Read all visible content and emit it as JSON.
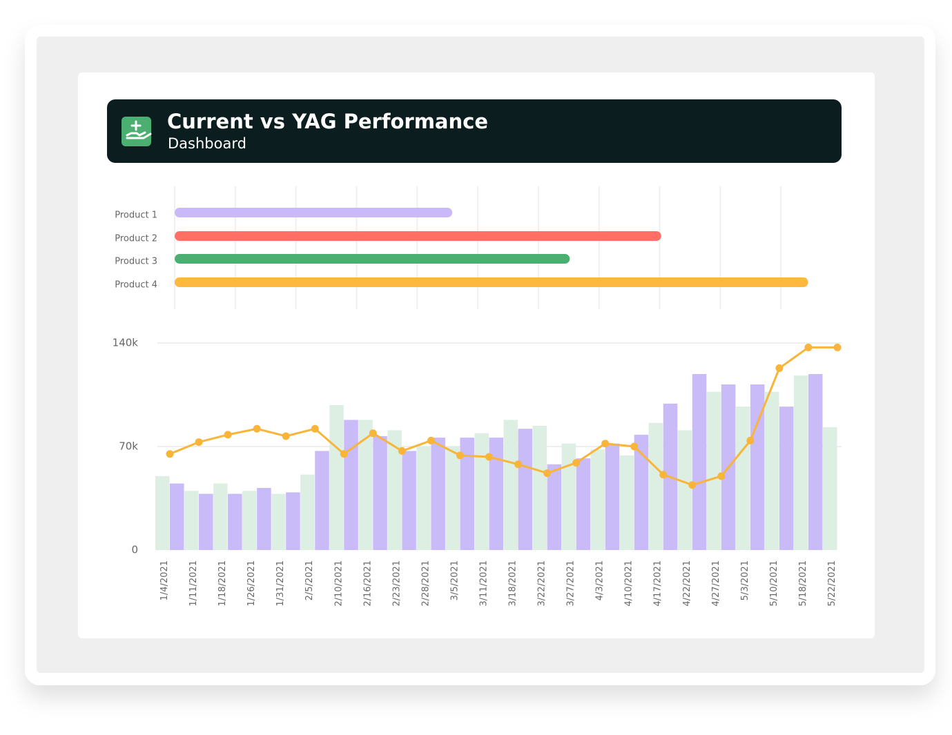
{
  "header": {
    "title": "Current vs YAG Performance",
    "subtitle": "Dashboard"
  },
  "chart_data": [
    {
      "type": "hbar",
      "categories": [
        "Product 1",
        "Product 2",
        "Product 3",
        "Product 4"
      ],
      "values": [
        42.5,
        74.5,
        60.5,
        97
      ],
      "colors": [
        "#c9b9f9",
        "#ff6f66",
        "#4caf72",
        "#ffb83f"
      ],
      "xlim": [
        0,
        100
      ]
    },
    {
      "type": "combo",
      "categories": [
        "1/4/2021",
        "1/11/2021",
        "1/18/2021",
        "1/26/2021",
        "1/31/2021",
        "2/5/2021",
        "2/10/2021",
        "2/16/2021",
        "2/23/2021",
        "2/28/2021",
        "3/5/2021",
        "3/11/2021",
        "3/18/2021",
        "3/22/2021",
        "3/27/2021",
        "4/3/2021",
        "4/10/2021",
        "4/17/2021",
        "4/22/2021",
        "4/27/2021",
        "5/3/2021",
        "5/10/2021",
        "5/18/2021",
        "5/22/2021"
      ],
      "series": [
        {
          "type": "bar",
          "color": "#dcefe2",
          "values": [
            50,
            40,
            45,
            40,
            38,
            51,
            98,
            88,
            81,
            70,
            70,
            79,
            88,
            84,
            72,
            68,
            64,
            86,
            81,
            107,
            97,
            107,
            118,
            83
          ]
        },
        {
          "type": "bar",
          "color": "#c9baf8",
          "values": [
            45,
            38,
            38,
            42,
            39,
            67,
            88,
            77,
            67,
            76,
            76,
            76,
            82,
            58,
            62,
            72,
            78,
            99,
            119,
            112,
            112,
            97,
            119,
            null
          ]
        },
        {
          "type": "line",
          "color": "#f9b53a",
          "values": [
            65,
            73,
            78,
            82,
            77,
            82,
            65,
            79,
            67,
            74,
            64,
            63,
            58,
            52,
            59,
            72,
            70,
            51,
            44,
            50,
            74,
            123,
            137,
            137
          ]
        }
      ],
      "ylim": [
        0,
        140000
      ],
      "yticks": [
        {
          "value": 0,
          "label": "0"
        },
        {
          "value": 70000,
          "label": "70k"
        },
        {
          "value": 140000,
          "label": "140k"
        }
      ],
      "value_unit": 1000,
      "grid": true
    }
  ]
}
